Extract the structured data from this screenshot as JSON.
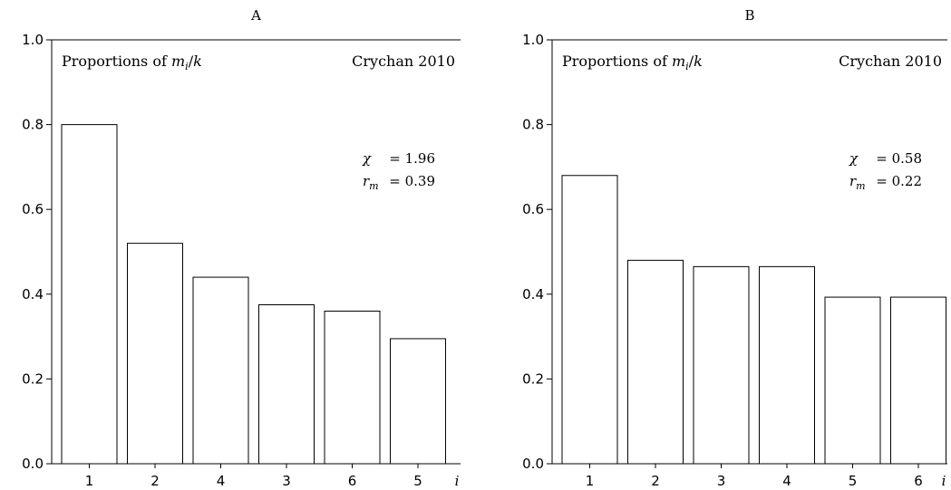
{
  "chart_data": [
    {
      "type": "bar",
      "title": "A",
      "annotation_left": "Proportions of m_i/k",
      "annotation_right": "Crychan 2010",
      "stats": [
        {
          "symbol": "χ",
          "subscript": "",
          "value": "= 1.96"
        },
        {
          "symbol": "r",
          "subscript": "m",
          "value": "= 0.39"
        }
      ],
      "xlabel": "i",
      "ylabel": "",
      "categories": [
        "1",
        "2",
        "4",
        "3",
        "6",
        "5"
      ],
      "values": [
        0.8,
        0.52,
        0.44,
        0.375,
        0.36,
        0.295
      ],
      "ylim": [
        0,
        1.0
      ],
      "yticks": [
        "0.0",
        "0.2",
        "0.4",
        "0.6",
        "0.8",
        "1.0"
      ],
      "grid": false,
      "legend": "none"
    },
    {
      "type": "bar",
      "title": "B",
      "annotation_left": "Proportions of m_i/k",
      "annotation_right": "Crychan 2010",
      "stats": [
        {
          "symbol": "χ",
          "subscript": "",
          "value": "= 0.58"
        },
        {
          "symbol": "r",
          "subscript": "m",
          "value": "= 0.22"
        }
      ],
      "xlabel": "i",
      "ylabel": "",
      "categories": [
        "1",
        "2",
        "3",
        "4",
        "5",
        "6"
      ],
      "values": [
        0.68,
        0.48,
        0.465,
        0.465,
        0.393,
        0.393
      ],
      "ylim": [
        0,
        1.0
      ],
      "yticks": [
        "0.0",
        "0.2",
        "0.4",
        "0.6",
        "0.8",
        "1.0"
      ],
      "grid": false,
      "legend": "none"
    }
  ]
}
